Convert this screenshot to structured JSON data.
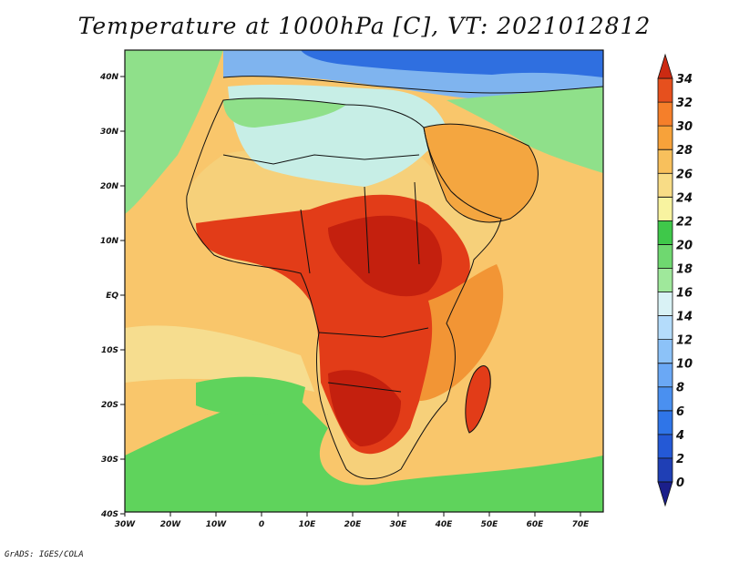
{
  "title": "Temperature at 1000hPa [C], VT: 2021012812",
  "credit": "GrADS: IGES/COLA",
  "axes": {
    "lon_ticks": [
      "30W",
      "20W",
      "10W",
      "0",
      "10E",
      "20E",
      "30E",
      "40E",
      "50E",
      "60E",
      "70E"
    ],
    "lat_ticks": [
      "40N",
      "30N",
      "20N",
      "10N",
      "EQ",
      "10S",
      "20S",
      "30S",
      "40S"
    ]
  },
  "colorbar": {
    "levels": [
      "0",
      "2",
      "4",
      "6",
      "8",
      "10",
      "12",
      "14",
      "16",
      "18",
      "20",
      "22",
      "24",
      "26",
      "28",
      "30",
      "32",
      "34"
    ],
    "colors": [
      "#1b1f8a",
      "#1f3fb5",
      "#2459d6",
      "#2f75e8",
      "#4a90f0",
      "#6aa8f5",
      "#8cc2f8",
      "#b4dcfb",
      "#d9f2f5",
      "#9fe89b",
      "#6fd870",
      "#3fc84a",
      "#f8f3a0",
      "#f8dc86",
      "#f8c05c",
      "#f7a23a",
      "#f57f2a",
      "#e6501e",
      "#cc2a12"
    ]
  },
  "map": {
    "ocean_color": "#f9c66b",
    "south_atlantic_color": "#f6dd8f",
    "southern_ocean_color": "#5fd35c",
    "mediterranean_color": "#7fb4ef",
    "europe_color": "#2f6fe0",
    "sahara_color": "#c7eee6",
    "sahel_color": "#f6d07a",
    "interior_hot_color": "#e23c18",
    "core_hot_color": "#c4200e",
    "east_coast_color": "#f29535",
    "arabia_color": "#f4a640"
  }
}
